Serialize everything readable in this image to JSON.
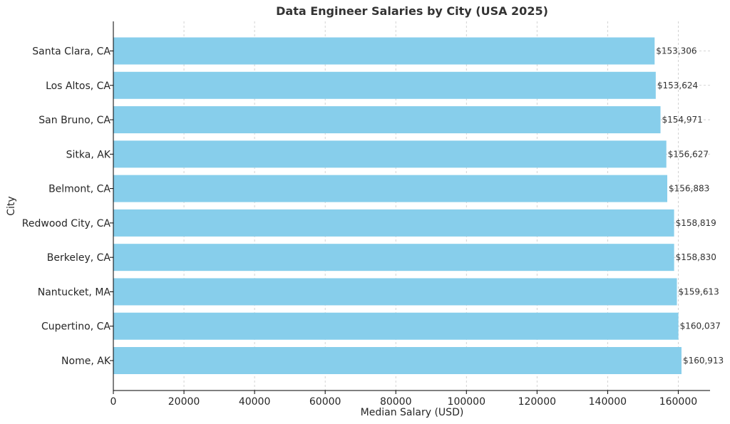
{
  "chart_data": {
    "type": "bar",
    "orientation": "horizontal",
    "title": "Data Engineer Salaries by City (USA 2025)",
    "xlabel": "Median Salary (USD)",
    "ylabel": "City",
    "categories": [
      "Santa Clara, CA",
      "Los Altos, CA",
      "San Bruno, CA",
      "Sitka, AK",
      "Belmont, CA",
      "Redwood City, CA",
      "Berkeley, CA",
      "Nantucket, MA",
      "Cupertino, CA",
      "Nome, AK"
    ],
    "values": [
      153306,
      153624,
      154971,
      156627,
      156883,
      158819,
      158830,
      159613,
      160037,
      160913
    ],
    "value_labels": [
      "$153,306",
      "$153,624",
      "$154,971",
      "$156,627",
      "$156,883",
      "$158,819",
      "$158,830",
      "$159,613",
      "$160,037",
      "$160,913"
    ],
    "xlim": [
      0,
      169000
    ],
    "xticks": [
      0,
      20000,
      40000,
      60000,
      80000,
      100000,
      120000,
      140000,
      160000
    ],
    "xtick_labels": [
      "0",
      "20000",
      "40000",
      "60000",
      "80000",
      "100000",
      "120000",
      "140000",
      "160000"
    ],
    "grid": true,
    "bar_color": "#87CEEB"
  }
}
